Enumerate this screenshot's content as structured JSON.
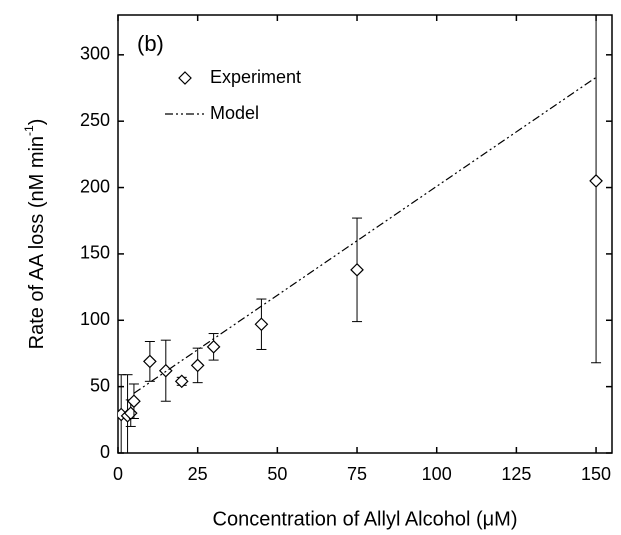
{
  "chart_data": {
    "type": "scatter",
    "annotation": "(b)",
    "x_label": "Concentration of Allyl Alcohol (μM)",
    "y_label": {
      "text": "Rate of AA loss (nM min",
      "sup": "-1",
      "end": ")"
    },
    "xlim": [
      0,
      155
    ],
    "ylim": [
      0,
      330
    ],
    "xticks": [
      0,
      25,
      50,
      75,
      100,
      125,
      150
    ],
    "yticks": [
      0,
      50,
      100,
      150,
      200,
      250,
      300
    ],
    "series": [
      {
        "name": "Experiment",
        "kind": "points",
        "color": "#000000",
        "x": [
          1,
          3,
          4,
          5,
          10,
          15,
          20,
          25,
          30,
          45,
          75,
          150
        ],
        "values": [
          29,
          28,
          30,
          39,
          69,
          62,
          54,
          66,
          80,
          97,
          138,
          205
        ],
        "errors": [
          30,
          31,
          10,
          13,
          15,
          23,
          3,
          13,
          10,
          19,
          39,
          137
        ]
      },
      {
        "name": "Model",
        "kind": "line",
        "color": "#000000",
        "x": [
          5,
          150
        ],
        "values": [
          45,
          283
        ]
      }
    ]
  }
}
